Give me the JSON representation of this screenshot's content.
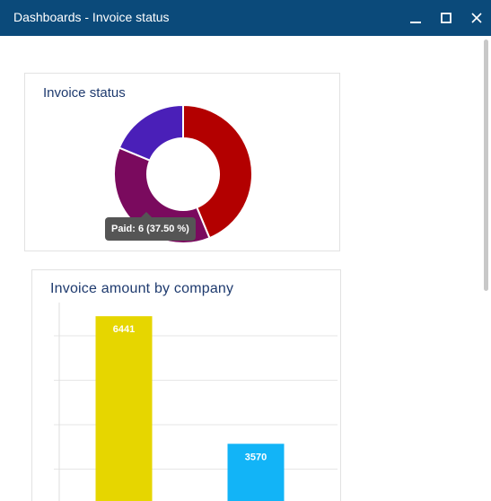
{
  "window": {
    "title": "Dashboards - Invoice status"
  },
  "icons": {
    "minimize": "minimize-icon",
    "maximize": "maximize-icon",
    "close": "close-icon"
  },
  "colors": {
    "titlebar": "#0b4a7a",
    "title_text": "#1e3a6e"
  },
  "invoice_status": {
    "title": "Invoice status",
    "tooltip": "Paid: 6 (37.50 %)"
  },
  "invoice_amount": {
    "title": "Invoice amount by company"
  },
  "chart_data": [
    {
      "type": "pie",
      "title": "Invoice status",
      "donut": true,
      "slices": [
        {
          "name": "",
          "value": 7,
          "color": "#b30000"
        },
        {
          "name": "Paid",
          "value": 6,
          "percent": 37.5,
          "color": "#7a0a5e"
        },
        {
          "name": "",
          "value": 3,
          "color": "#4a1fb8"
        }
      ]
    },
    {
      "type": "bar",
      "title": "Invoice amount by company",
      "categories": [
        "",
        ""
      ],
      "values": [
        6441,
        3570
      ],
      "colors": [
        "#e6d600",
        "#12b4f7"
      ],
      "ylim": [
        0,
        8000
      ],
      "grid": true
    }
  ]
}
